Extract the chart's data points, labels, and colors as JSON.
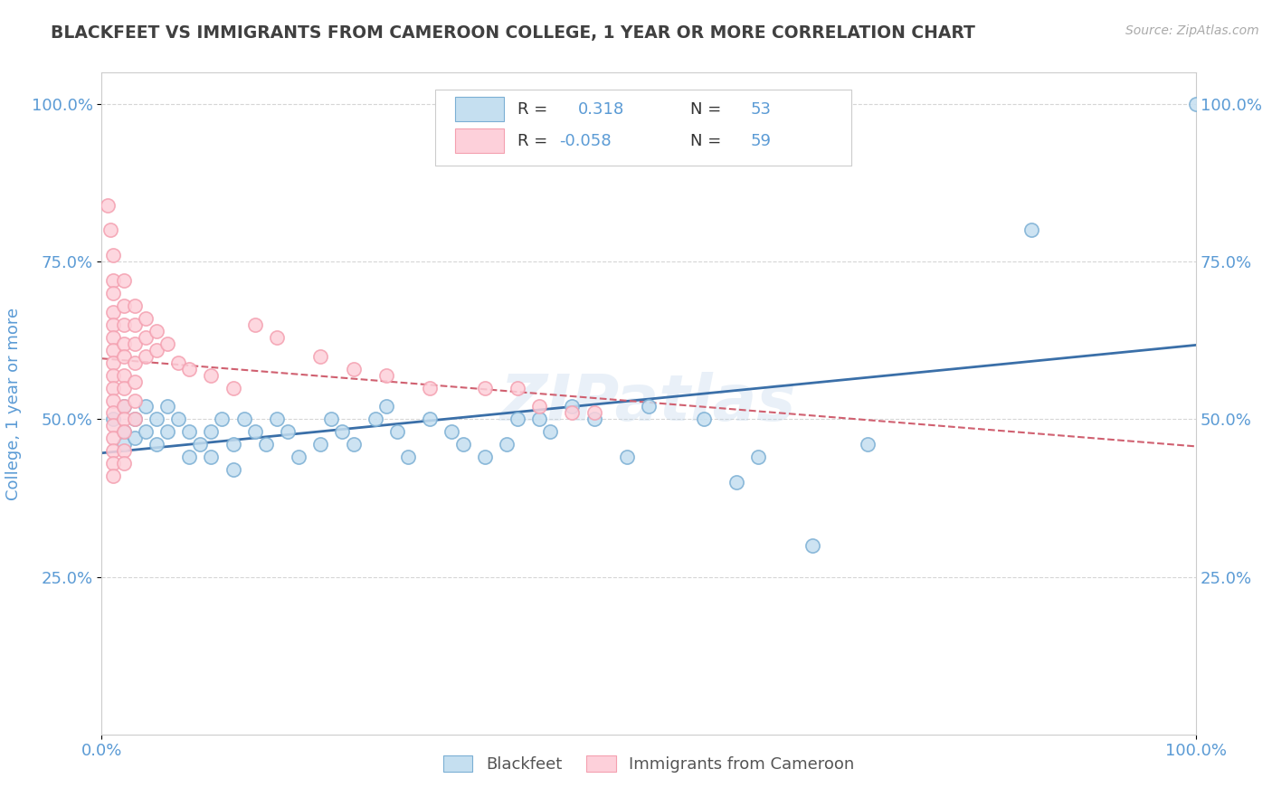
{
  "title": "BLACKFEET VS IMMIGRANTS FROM CAMEROON COLLEGE, 1 YEAR OR MORE CORRELATION CHART",
  "source": "Source: ZipAtlas.com",
  "ylabel": "College, 1 year or more",
  "xlim": [
    0.0,
    1.0
  ],
  "ylim": [
    0.0,
    1.05
  ],
  "blue_color": "#7bafd4",
  "pink_color": "#f4a0b0",
  "blue_fill": "#c5dff0",
  "pink_fill": "#fdd0da",
  "trend_blue": "#3a6fa8",
  "trend_pink": "#d06070",
  "watermark": "ZIPatlas",
  "title_color": "#404040",
  "axis_label_color": "#5b9bd5",
  "blue_scatter": [
    [
      0.01,
      0.5
    ],
    [
      0.02,
      0.48
    ],
    [
      0.02,
      0.52
    ],
    [
      0.02,
      0.46
    ],
    [
      0.03,
      0.5
    ],
    [
      0.03,
      0.47
    ],
    [
      0.04,
      0.52
    ],
    [
      0.04,
      0.48
    ],
    [
      0.05,
      0.5
    ],
    [
      0.05,
      0.46
    ],
    [
      0.06,
      0.52
    ],
    [
      0.06,
      0.48
    ],
    [
      0.07,
      0.5
    ],
    [
      0.08,
      0.48
    ],
    [
      0.08,
      0.44
    ],
    [
      0.09,
      0.46
    ],
    [
      0.1,
      0.48
    ],
    [
      0.1,
      0.44
    ],
    [
      0.11,
      0.5
    ],
    [
      0.12,
      0.46
    ],
    [
      0.12,
      0.42
    ],
    [
      0.13,
      0.5
    ],
    [
      0.14,
      0.48
    ],
    [
      0.15,
      0.46
    ],
    [
      0.16,
      0.5
    ],
    [
      0.17,
      0.48
    ],
    [
      0.18,
      0.44
    ],
    [
      0.2,
      0.46
    ],
    [
      0.21,
      0.5
    ],
    [
      0.22,
      0.48
    ],
    [
      0.23,
      0.46
    ],
    [
      0.25,
      0.5
    ],
    [
      0.26,
      0.52
    ],
    [
      0.27,
      0.48
    ],
    [
      0.28,
      0.44
    ],
    [
      0.3,
      0.5
    ],
    [
      0.32,
      0.48
    ],
    [
      0.33,
      0.46
    ],
    [
      0.35,
      0.44
    ],
    [
      0.37,
      0.46
    ],
    [
      0.38,
      0.5
    ],
    [
      0.4,
      0.5
    ],
    [
      0.41,
      0.48
    ],
    [
      0.43,
      0.52
    ],
    [
      0.45,
      0.5
    ],
    [
      0.48,
      0.44
    ],
    [
      0.5,
      0.52
    ],
    [
      0.55,
      0.5
    ],
    [
      0.58,
      0.4
    ],
    [
      0.6,
      0.44
    ],
    [
      0.65,
      0.3
    ],
    [
      0.7,
      0.46
    ],
    [
      0.85,
      0.8
    ],
    [
      1.0,
      1.0
    ]
  ],
  "pink_scatter": [
    [
      0.005,
      0.84
    ],
    [
      0.008,
      0.8
    ],
    [
      0.01,
      0.76
    ],
    [
      0.01,
      0.72
    ],
    [
      0.01,
      0.7
    ],
    [
      0.01,
      0.67
    ],
    [
      0.01,
      0.65
    ],
    [
      0.01,
      0.63
    ],
    [
      0.01,
      0.61
    ],
    [
      0.01,
      0.59
    ],
    [
      0.01,
      0.57
    ],
    [
      0.01,
      0.55
    ],
    [
      0.01,
      0.53
    ],
    [
      0.01,
      0.51
    ],
    [
      0.01,
      0.49
    ],
    [
      0.01,
      0.47
    ],
    [
      0.01,
      0.45
    ],
    [
      0.01,
      0.43
    ],
    [
      0.01,
      0.41
    ],
    [
      0.02,
      0.72
    ],
    [
      0.02,
      0.68
    ],
    [
      0.02,
      0.65
    ],
    [
      0.02,
      0.62
    ],
    [
      0.02,
      0.6
    ],
    [
      0.02,
      0.57
    ],
    [
      0.02,
      0.55
    ],
    [
      0.02,
      0.52
    ],
    [
      0.02,
      0.5
    ],
    [
      0.02,
      0.48
    ],
    [
      0.02,
      0.45
    ],
    [
      0.02,
      0.43
    ],
    [
      0.03,
      0.68
    ],
    [
      0.03,
      0.65
    ],
    [
      0.03,
      0.62
    ],
    [
      0.03,
      0.59
    ],
    [
      0.03,
      0.56
    ],
    [
      0.03,
      0.53
    ],
    [
      0.03,
      0.5
    ],
    [
      0.04,
      0.66
    ],
    [
      0.04,
      0.63
    ],
    [
      0.04,
      0.6
    ],
    [
      0.05,
      0.64
    ],
    [
      0.05,
      0.61
    ],
    [
      0.06,
      0.62
    ],
    [
      0.07,
      0.59
    ],
    [
      0.08,
      0.58
    ],
    [
      0.1,
      0.57
    ],
    [
      0.12,
      0.55
    ],
    [
      0.14,
      0.65
    ],
    [
      0.16,
      0.63
    ],
    [
      0.2,
      0.6
    ],
    [
      0.23,
      0.58
    ],
    [
      0.26,
      0.57
    ],
    [
      0.3,
      0.55
    ],
    [
      0.35,
      0.55
    ],
    [
      0.38,
      0.55
    ],
    [
      0.4,
      0.52
    ],
    [
      0.43,
      0.51
    ],
    [
      0.45,
      0.51
    ]
  ]
}
